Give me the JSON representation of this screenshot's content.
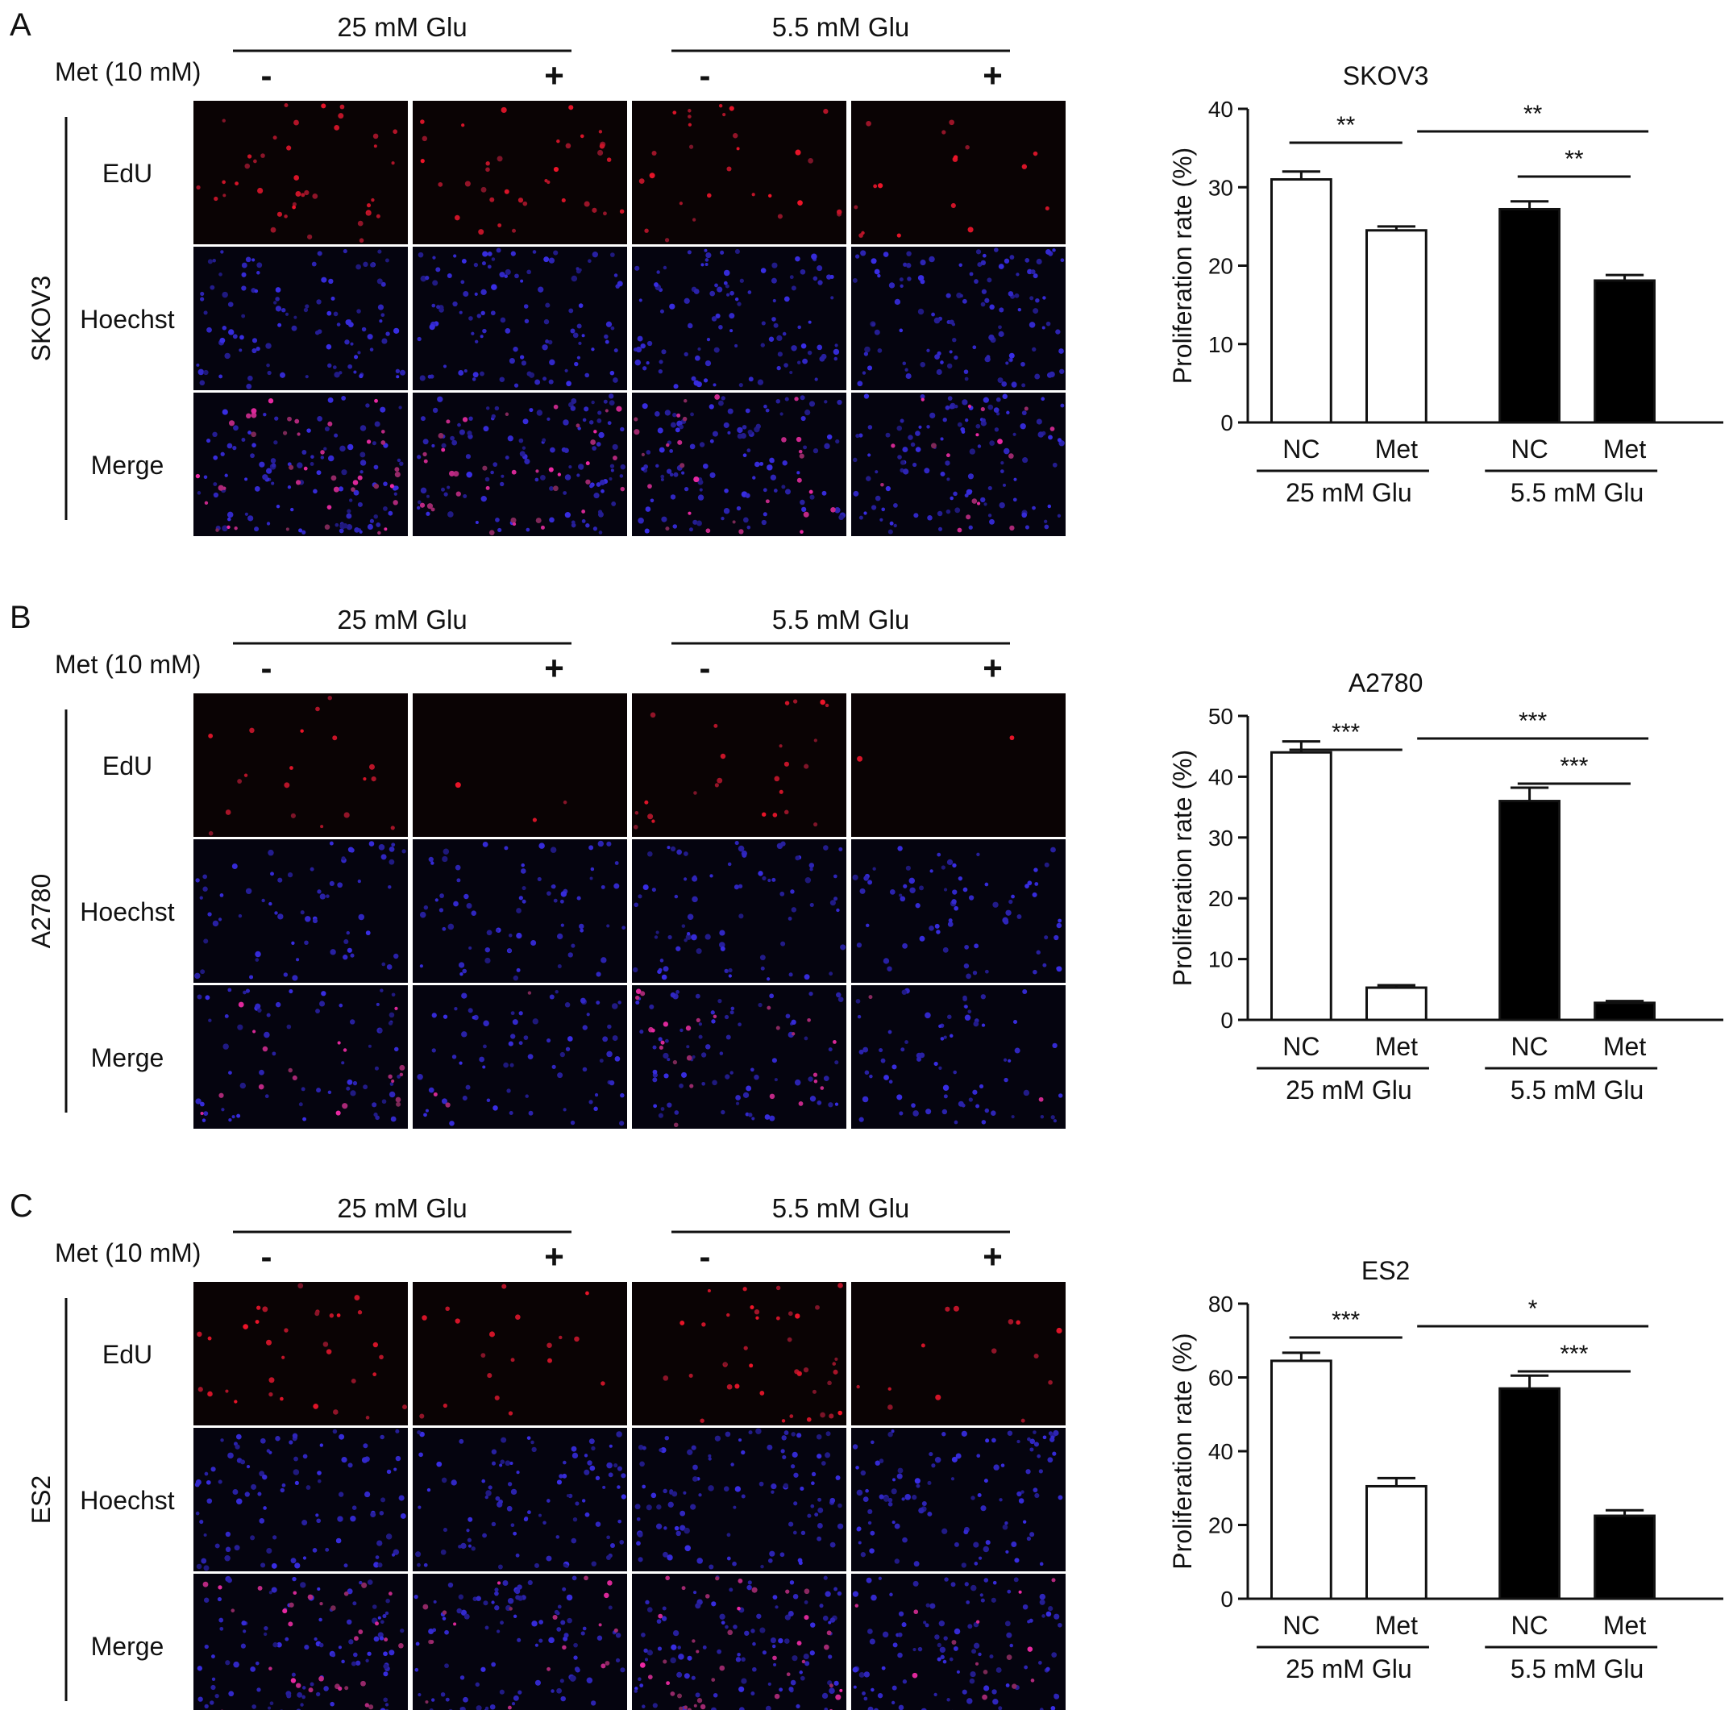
{
  "panels": [
    {
      "letter": "A",
      "cell_line": "SKOV3",
      "treatment_label": "Met (10 mM)",
      "groups": [
        "25 mM Glu",
        "5.5 mM Glu"
      ],
      "signs": [
        "-",
        "+",
        "-",
        "+"
      ],
      "rows": [
        "EdU",
        "Hoechst",
        "Merge"
      ],
      "image_density": [
        {
          "edu": 0.75,
          "hoechst": 0.8
        },
        {
          "edu": 0.65,
          "hoechst": 0.85
        },
        {
          "edu": 0.5,
          "hoechst": 0.85
        },
        {
          "edu": 0.3,
          "hoechst": 0.9
        }
      ]
    },
    {
      "letter": "B",
      "cell_line": "A2780",
      "treatment_label": "Met (10 mM)",
      "groups": [
        "25 mM Glu",
        "5.5 mM Glu"
      ],
      "signs": [
        "-",
        "+",
        "-",
        "+"
      ],
      "rows": [
        "EdU",
        "Hoechst",
        "Merge"
      ],
      "image_density": [
        {
          "edu": 0.35,
          "hoechst": 0.5
        },
        {
          "edu": 0.05,
          "hoechst": 0.55
        },
        {
          "edu": 0.45,
          "hoechst": 0.6
        },
        {
          "edu": 0.03,
          "hoechst": 0.55
        }
      ]
    },
    {
      "letter": "C",
      "cell_line": "ES2",
      "treatment_label": "Met (10 mM)",
      "groups": [
        "25 mM Glu",
        "5.5 mM Glu"
      ],
      "signs": [
        "-",
        "+",
        "-",
        "+"
      ],
      "rows": [
        "EdU",
        "Hoechst",
        "Merge"
      ],
      "image_density": [
        {
          "edu": 0.6,
          "hoechst": 0.75
        },
        {
          "edu": 0.35,
          "hoechst": 0.75
        },
        {
          "edu": 0.7,
          "hoechst": 0.8
        },
        {
          "edu": 0.25,
          "hoechst": 0.8
        }
      ]
    }
  ],
  "chart_data": [
    {
      "type": "bar",
      "title": "SKOV3",
      "xlabel": "",
      "ylabel": "Proliferation rate (%)",
      "categories": [
        "NC",
        "Met",
        "NC",
        "Met"
      ],
      "groups": [
        {
          "label": "25 mM Glu",
          "categories": [
            0,
            1
          ]
        },
        {
          "label": "5.5 mM Glu",
          "categories": [
            2,
            3
          ]
        }
      ],
      "values": [
        31,
        24.5,
        27.2,
        18.1
      ],
      "errors": [
        1.0,
        0.5,
        1.0,
        0.7
      ],
      "bar_colors": [
        "#ffffff",
        "#ffffff",
        "#000000",
        "#000000"
      ],
      "ylim": [
        0,
        40
      ],
      "yticks": [
        0,
        10,
        20,
        30,
        40
      ],
      "significance": [
        {
          "from": 0,
          "to": 1,
          "label": "**"
        },
        {
          "from": 1,
          "to": 3,
          "label": "**"
        },
        {
          "from": 2,
          "to": 3,
          "label": "**"
        }
      ]
    },
    {
      "type": "bar",
      "title": "A2780",
      "xlabel": "",
      "ylabel": "Proliferation rate (%)",
      "categories": [
        "NC",
        "Met",
        "NC",
        "Met"
      ],
      "groups": [
        {
          "label": "25 mM Glu",
          "categories": [
            0,
            1
          ]
        },
        {
          "label": "5.5 mM Glu",
          "categories": [
            2,
            3
          ]
        }
      ],
      "values": [
        44,
        5.3,
        36,
        2.8
      ],
      "errors": [
        1.8,
        0.4,
        2.2,
        0.3
      ],
      "bar_colors": [
        "#ffffff",
        "#ffffff",
        "#000000",
        "#000000"
      ],
      "ylim": [
        0,
        50
      ],
      "yticks": [
        0,
        10,
        20,
        30,
        40,
        50
      ],
      "significance": [
        {
          "from": 0,
          "to": 1,
          "label": "***"
        },
        {
          "from": 1,
          "to": 3,
          "label": "***"
        },
        {
          "from": 2,
          "to": 3,
          "label": "***"
        }
      ]
    },
    {
      "type": "bar",
      "title": "ES2",
      "xlabel": "",
      "ylabel": "Proliferation rate (%)",
      "categories": [
        "NC",
        "Met",
        "NC",
        "Met"
      ],
      "groups": [
        {
          "label": "25 mM Glu",
          "categories": [
            0,
            1
          ]
        },
        {
          "label": "5.5 mM Glu",
          "categories": [
            2,
            3
          ]
        }
      ],
      "values": [
        64.5,
        30.5,
        57,
        22.5
      ],
      "errors": [
        2.2,
        2.2,
        3.5,
        1.5
      ],
      "bar_colors": [
        "#ffffff",
        "#ffffff",
        "#000000",
        "#000000"
      ],
      "ylim": [
        0,
        80
      ],
      "yticks": [
        0,
        20,
        40,
        60,
        80
      ],
      "significance": [
        {
          "from": 0,
          "to": 1,
          "label": "***"
        },
        {
          "from": 1,
          "to": 3,
          "label": "*"
        },
        {
          "from": 2,
          "to": 3,
          "label": "***"
        }
      ]
    }
  ]
}
